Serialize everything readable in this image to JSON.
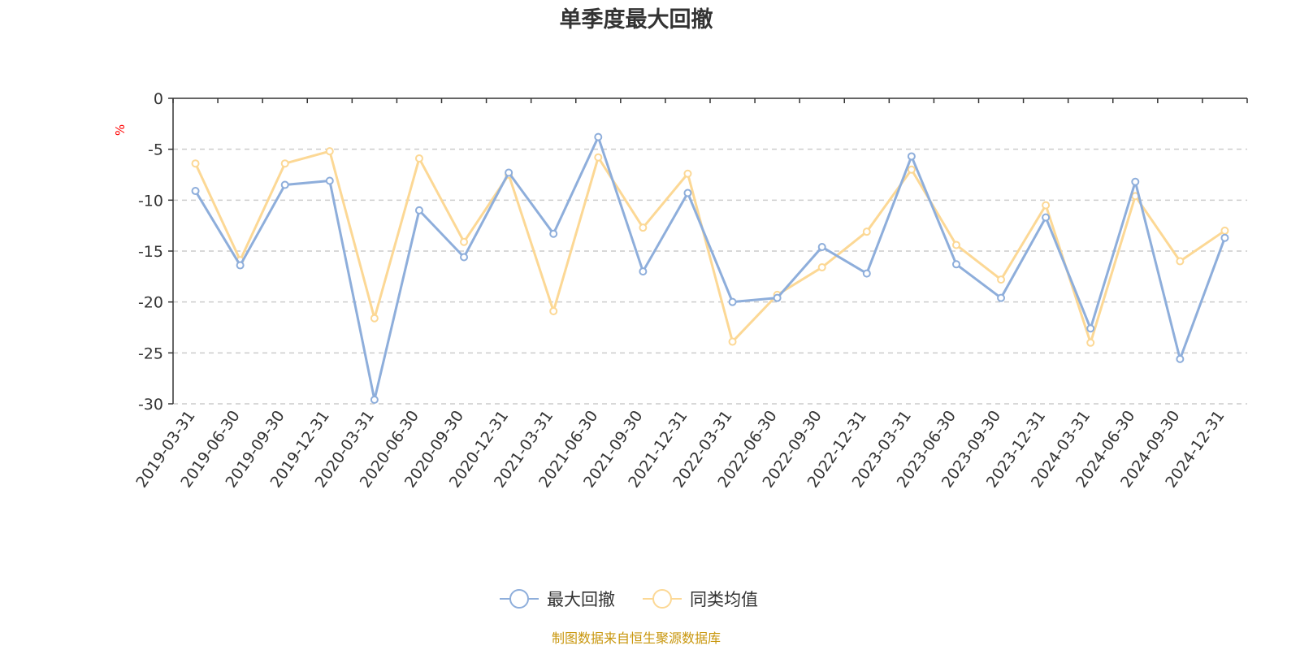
{
  "chart_data": {
    "type": "line",
    "title": "单季度最大回撤",
    "ylabel": "%",
    "ylim": [
      -30,
      0
    ],
    "yticks": [
      0,
      -5,
      -10,
      -15,
      -20,
      -25,
      -30
    ],
    "grid": true,
    "legend_position": "bottom",
    "categories": [
      "2019-03-31",
      "2019-06-30",
      "2019-09-30",
      "2019-12-31",
      "2020-03-31",
      "2020-06-30",
      "2020-09-30",
      "2020-12-31",
      "2021-03-31",
      "2021-06-30",
      "2021-09-30",
      "2021-12-31",
      "2022-03-31",
      "2022-06-30",
      "2022-09-30",
      "2022-12-31",
      "2023-03-31",
      "2023-06-30",
      "2023-09-30",
      "2023-12-31",
      "2024-03-31",
      "2024-06-30",
      "2024-09-30",
      "2024-12-31"
    ],
    "series": [
      {
        "name": "最大回撤",
        "color": "#8eaedb",
        "values": [
          -9.1,
          -16.4,
          -8.5,
          -8.1,
          -29.6,
          -11.0,
          -15.6,
          -7.3,
          -13.3,
          -3.8,
          -17.0,
          -9.3,
          -20.0,
          -19.6,
          -14.6,
          -17.2,
          -5.7,
          -16.3,
          -19.6,
          -11.7,
          -22.6,
          -8.2,
          -25.6,
          -13.7
        ]
      },
      {
        "name": "同类均值",
        "color": "#fcd895",
        "values": [
          -6.4,
          -15.9,
          -6.4,
          -5.2,
          -21.6,
          -5.9,
          -14.1,
          -7.5,
          -20.9,
          -5.8,
          -12.7,
          -7.4,
          -23.9,
          -19.3,
          -16.6,
          -13.1,
          -7.0,
          -14.4,
          -17.8,
          -10.5,
          -24.0,
          -9.6,
          -16.0,
          -13.0
        ]
      }
    ]
  },
  "footer": {
    "source": "制图数据来自恒生聚源数据库"
  }
}
